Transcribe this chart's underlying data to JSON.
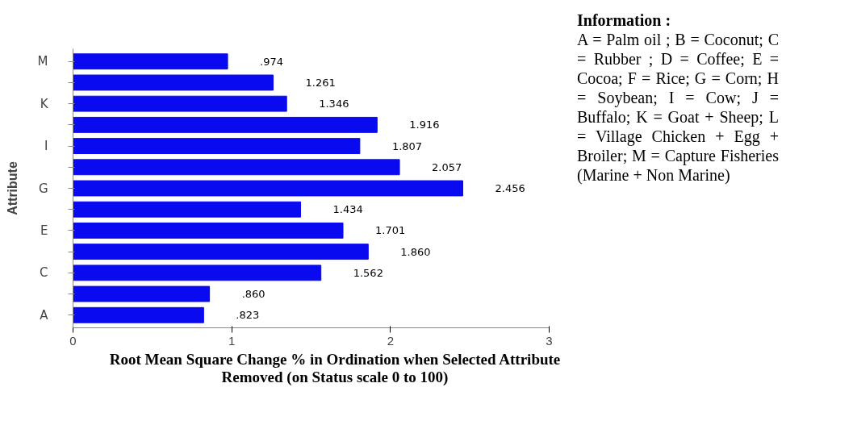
{
  "chart_data": {
    "type": "bar",
    "orientation": "horizontal",
    "xlabel": "Root Mean Square Change % in Ordination when Selected Attribute Removed (on Status scale 0 to 100)",
    "ylabel": "Attribute",
    "categories": [
      "M",
      null,
      "K",
      null,
      "I",
      null,
      "G",
      null,
      "E",
      null,
      "C",
      null,
      "A"
    ],
    "values": [
      0.974,
      1.261,
      1.346,
      1.916,
      1.807,
      2.057,
      2.456,
      1.434,
      1.701,
      1.86,
      1.562,
      0.86,
      0.823
    ],
    "value_labels": [
      ".974",
      "1.261",
      "1.346",
      "1.916",
      "1.807",
      "2.057",
      "2.456",
      "1.434",
      "1.701",
      "1.860",
      "1.562",
      ".860",
      ".823"
    ],
    "color": "#0a0af0",
    "xlim": [
      0,
      3
    ],
    "xticks": [
      0,
      1,
      2,
      3
    ],
    "grid": false,
    "annotations": [
      "Information :",
      "A = Palm oil ; B = Coconut; C = Rubber ; D = Coffee; E = Cocoa; F = Rice; G = Corn; H = Soybean; I = Cow; J = Buffalo; K = Goat + Sheep; L = Village Chicken + Egg + Broiler; M = Capture Fisheries (Marine + Non Marine)"
    ]
  }
}
